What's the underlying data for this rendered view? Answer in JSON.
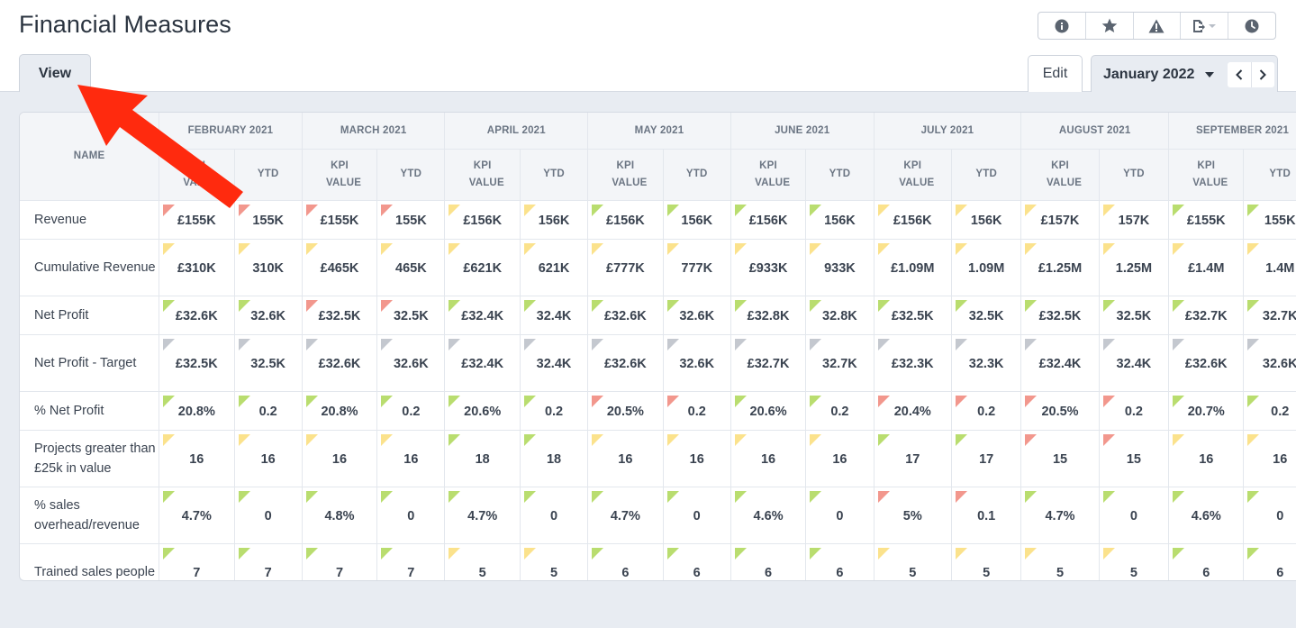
{
  "page": {
    "title": "Financial Measures"
  },
  "tabs": {
    "view": "View",
    "edit": "Edit",
    "period": "January 2022"
  },
  "toolbar": {
    "icons": [
      "info-icon",
      "star-icon",
      "warning-icon",
      "export-icon",
      "clock-icon"
    ]
  },
  "colors": {
    "red": "#f2978d",
    "amber": "#fbe28c",
    "green": "#b9dd6f",
    "grey": "#c4c8cf",
    "arrow": "#ff2a0e"
  },
  "table": {
    "name_header": "NAME",
    "months": [
      "FEBRUARY 2021",
      "MARCH 2021",
      "APRIL 2021",
      "MAY 2021",
      "JUNE 2021",
      "JULY 2021",
      "AUGUST 2021",
      "SEPTEMBER 2021"
    ],
    "sub_headers": {
      "kpi": "KPI VALUE",
      "ytd": "YTD"
    },
    "rows": [
      {
        "name": "Revenue",
        "cells": [
          [
            "£155K",
            "red"
          ],
          [
            "155K",
            "red"
          ],
          [
            "£155K",
            "red"
          ],
          [
            "155K",
            "red"
          ],
          [
            "£156K",
            "amber"
          ],
          [
            "156K",
            "amber"
          ],
          [
            "£156K",
            "green"
          ],
          [
            "156K",
            "green"
          ],
          [
            "£156K",
            "green"
          ],
          [
            "156K",
            "green"
          ],
          [
            "£156K",
            "amber"
          ],
          [
            "156K",
            "amber"
          ],
          [
            "£157K",
            "amber"
          ],
          [
            "157K",
            "amber"
          ],
          [
            "£155K",
            "green"
          ],
          [
            "155K",
            "green"
          ]
        ]
      },
      {
        "name": "Cumulative Revenue",
        "cells": [
          [
            "£310K",
            "amber"
          ],
          [
            "310K",
            "amber"
          ],
          [
            "£465K",
            "amber"
          ],
          [
            "465K",
            "amber"
          ],
          [
            "£621K",
            "amber"
          ],
          [
            "621K",
            "amber"
          ],
          [
            "£777K",
            "amber"
          ],
          [
            "777K",
            "amber"
          ],
          [
            "£933K",
            "amber"
          ],
          [
            "933K",
            "amber"
          ],
          [
            "£1.09M",
            "amber"
          ],
          [
            "1.09M",
            "amber"
          ],
          [
            "£1.25M",
            "amber"
          ],
          [
            "1.25M",
            "amber"
          ],
          [
            "£1.4M",
            "amber"
          ],
          [
            "1.4M",
            "amber"
          ]
        ]
      },
      {
        "name": "Net Profit",
        "cells": [
          [
            "£32.6K",
            "green"
          ],
          [
            "32.6K",
            "green"
          ],
          [
            "£32.5K",
            "red"
          ],
          [
            "32.5K",
            "red"
          ],
          [
            "£32.4K",
            "green"
          ],
          [
            "32.4K",
            "green"
          ],
          [
            "£32.6K",
            "green"
          ],
          [
            "32.6K",
            "green"
          ],
          [
            "£32.8K",
            "green"
          ],
          [
            "32.8K",
            "green"
          ],
          [
            "£32.5K",
            "green"
          ],
          [
            "32.5K",
            "green"
          ],
          [
            "£32.5K",
            "green"
          ],
          [
            "32.5K",
            "green"
          ],
          [
            "£32.7K",
            "green"
          ],
          [
            "32.7K",
            "green"
          ]
        ]
      },
      {
        "name": "Net Profit - Target",
        "cells": [
          [
            "£32.5K",
            "grey"
          ],
          [
            "32.5K",
            "grey"
          ],
          [
            "£32.6K",
            "grey"
          ],
          [
            "32.6K",
            "grey"
          ],
          [
            "£32.4K",
            "grey"
          ],
          [
            "32.4K",
            "grey"
          ],
          [
            "£32.6K",
            "grey"
          ],
          [
            "32.6K",
            "grey"
          ],
          [
            "£32.7K",
            "grey"
          ],
          [
            "32.7K",
            "grey"
          ],
          [
            "£32.3K",
            "grey"
          ],
          [
            "32.3K",
            "grey"
          ],
          [
            "£32.4K",
            "grey"
          ],
          [
            "32.4K",
            "grey"
          ],
          [
            "£32.6K",
            "grey"
          ],
          [
            "32.6K",
            "grey"
          ]
        ]
      },
      {
        "name": "% Net Profit",
        "cells": [
          [
            "20.8%",
            "green"
          ],
          [
            "0.2",
            "green"
          ],
          [
            "20.8%",
            "green"
          ],
          [
            "0.2",
            "green"
          ],
          [
            "20.6%",
            "green"
          ],
          [
            "0.2",
            "green"
          ],
          [
            "20.5%",
            "red"
          ],
          [
            "0.2",
            "red"
          ],
          [
            "20.6%",
            "green"
          ],
          [
            "0.2",
            "green"
          ],
          [
            "20.4%",
            "red"
          ],
          [
            "0.2",
            "red"
          ],
          [
            "20.5%",
            "red"
          ],
          [
            "0.2",
            "red"
          ],
          [
            "20.7%",
            "green"
          ],
          [
            "0.2",
            "green"
          ]
        ]
      },
      {
        "name": "Projects greater than £25k in value",
        "cells": [
          [
            "16",
            "amber"
          ],
          [
            "16",
            "amber"
          ],
          [
            "16",
            "amber"
          ],
          [
            "16",
            "amber"
          ],
          [
            "18",
            "green"
          ],
          [
            "18",
            "green"
          ],
          [
            "16",
            "amber"
          ],
          [
            "16",
            "amber"
          ],
          [
            "16",
            "amber"
          ],
          [
            "16",
            "amber"
          ],
          [
            "17",
            "green"
          ],
          [
            "17",
            "green"
          ],
          [
            "15",
            "red"
          ],
          [
            "15",
            "red"
          ],
          [
            "16",
            "amber"
          ],
          [
            "16",
            "amber"
          ]
        ]
      },
      {
        "name": "% sales overhead/revenue",
        "cells": [
          [
            "4.7%",
            "green"
          ],
          [
            "0",
            "green"
          ],
          [
            "4.8%",
            "green"
          ],
          [
            "0",
            "green"
          ],
          [
            "4.7%",
            "green"
          ],
          [
            "0",
            "green"
          ],
          [
            "4.7%",
            "green"
          ],
          [
            "0",
            "green"
          ],
          [
            "4.6%",
            "green"
          ],
          [
            "0",
            "green"
          ],
          [
            "5%",
            "red"
          ],
          [
            "0.1",
            "red"
          ],
          [
            "4.7%",
            "green"
          ],
          [
            "0",
            "green"
          ],
          [
            "4.6%",
            "green"
          ],
          [
            "0",
            "green"
          ]
        ]
      },
      {
        "name": "Trained sales people",
        "cells": [
          [
            "7",
            "green"
          ],
          [
            "7",
            "green"
          ],
          [
            "7",
            "green"
          ],
          [
            "7",
            "green"
          ],
          [
            "5",
            "amber"
          ],
          [
            "5",
            "amber"
          ],
          [
            "6",
            "green"
          ],
          [
            "6",
            "green"
          ],
          [
            "6",
            "green"
          ],
          [
            "6",
            "green"
          ],
          [
            "5",
            "amber"
          ],
          [
            "5",
            "amber"
          ],
          [
            "5",
            "amber"
          ],
          [
            "5",
            "amber"
          ],
          [
            "6",
            "green"
          ],
          [
            "6",
            "green"
          ]
        ]
      }
    ]
  }
}
